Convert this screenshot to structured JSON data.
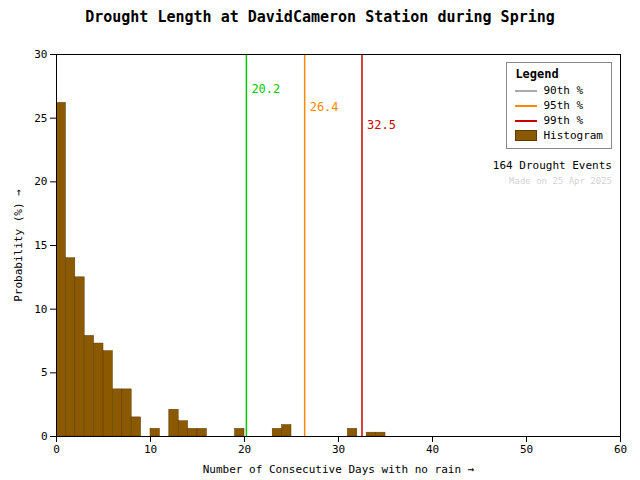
{
  "chart_data": {
    "type": "histogram",
    "title": "Drought Length at DavidCameron Station during Spring",
    "xlabel": "Number of Consecutive Days with no rain",
    "ylabel": "Probability (%)",
    "bins": [
      0,
      1,
      2,
      3,
      4,
      5,
      6,
      7,
      8,
      9,
      10,
      11,
      12,
      13,
      14,
      15,
      16,
      17,
      18,
      19,
      20,
      21,
      22,
      23,
      24,
      25,
      26,
      27,
      28,
      29,
      30,
      31,
      32,
      33,
      34,
      35,
      36,
      37,
      38,
      39,
      40,
      41,
      42,
      43,
      44,
      45,
      46,
      47,
      48,
      49,
      50,
      51,
      52,
      53,
      54,
      55,
      56,
      57,
      58,
      59
    ],
    "values": [
      26.2,
      14.0,
      12.5,
      7.9,
      7.3,
      6.7,
      3.7,
      3.7,
      1.5,
      0.0,
      0.6,
      0.0,
      2.1,
      1.2,
      0.6,
      0.6,
      0.0,
      0.0,
      0.0,
      0.6,
      0.0,
      0.0,
      0.0,
      0.6,
      0.9,
      0.0,
      0.0,
      0.0,
      0.0,
      0.0,
      0.0,
      0.6,
      0.0,
      0.3,
      0.3,
      0.0,
      0.0,
      0.0,
      0.0,
      0.0,
      0.0,
      0.0,
      0.0,
      0.0,
      0.0,
      0.0,
      0.0,
      0.0,
      0.0,
      0.0,
      0.0,
      0.0,
      0.0,
      0.0,
      0.0,
      0.0,
      0.0,
      0.0,
      0.0
    ],
    "name": "Histogram",
    "color": "#8B5A00",
    "edge_color": "#5C3A00",
    "percentiles": [
      {
        "name": "90th %",
        "value": 20.2,
        "color": "#00cc00",
        "legend_color": "#aaaaaa"
      },
      {
        "name": "95th %",
        "value": 26.4,
        "color": "#ff8800",
        "legend_color": "#ff8800"
      },
      {
        "name": "99th %",
        "value": 32.5,
        "color": "#cc0000",
        "legend_color": "#cc0000"
      }
    ],
    "legend_title": "Legend",
    "annotations": [
      "164 Drought Events",
      "Made on 25 Apr 2025"
    ],
    "xlim": [
      0,
      60
    ],
    "ylim": [
      0,
      30
    ],
    "xticks": [
      0,
      10,
      20,
      30,
      40,
      50,
      60
    ],
    "yticks": [
      0,
      5,
      10,
      15,
      20,
      25,
      30
    ],
    "grid": false,
    "legend": "upper right"
  }
}
